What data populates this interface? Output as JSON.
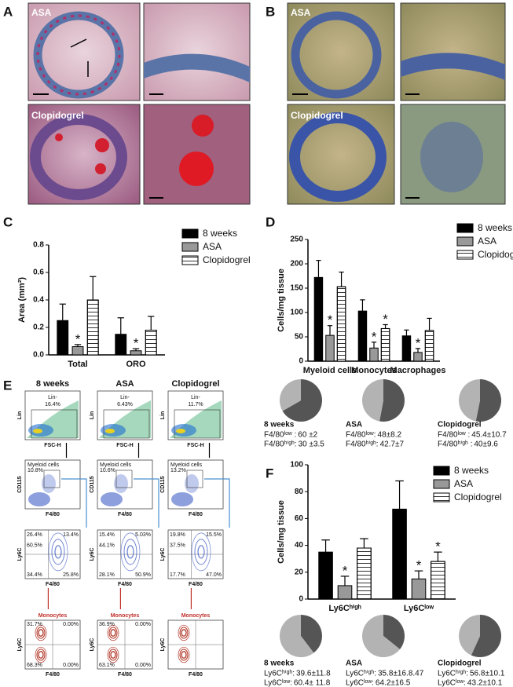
{
  "panels": [
    "A",
    "B",
    "C",
    "D",
    "E",
    "F"
  ],
  "histology": {
    "A": [
      "ASA",
      "Clopidogrel"
    ],
    "B": [
      "ASA",
      "Clopidogrel"
    ]
  },
  "flow": {
    "columns": [
      "8 weeks",
      "ASA",
      "Clopidogrel"
    ],
    "row1": {
      "ylabel": "Lin",
      "xlabel": "FSC-H",
      "gate": "Lin-",
      "pct": [
        "16.4%",
        "6.43%",
        "11.7%"
      ]
    },
    "row2": {
      "ylabel": "CD115",
      "xlabel": "F4/80",
      "gate": "Myeloid cells",
      "pct": [
        "10.8%",
        "10.6%",
        "13.2%"
      ]
    },
    "row3": {
      "ylabel": "Ly6C",
      "xlabel": "F4/80",
      "quadrants": [
        [
          "26.4%",
          "13.4%",
          "60.5%",
          "34.4%",
          "25.8%"
        ],
        [
          "15.4%",
          "5.03%",
          "44.1%",
          "28.1%",
          "50.9%"
        ],
        [
          "19.8%",
          "15.5%",
          "37.5%",
          "17.7%",
          "47.0%"
        ]
      ]
    },
    "row4": {
      "ylabel": "Ly6C",
      "xlabel": "F4/80",
      "gate": "Monocytes",
      "quadrants": [
        [
          "31.7%",
          "0.00%",
          "68.3%",
          "0.00%"
        ],
        [
          "36.9%",
          "0.00%",
          "63.1%",
          "0.00%"
        ]
      ]
    }
  },
  "chart_data": [
    {
      "type": "bar",
      "ylabel": "Area (mm²)",
      "categories": [
        "Total",
        "ORO"
      ],
      "series": [
        {
          "name": "8 weeks",
          "color": "#000000",
          "values": [
            0.25,
            0.15
          ],
          "errors": [
            0.12,
            0.12
          ]
        },
        {
          "name": "ASA",
          "color": "#999999",
          "values": [
            0.06,
            0.03
          ],
          "errors": [
            0.015,
            0.015
          ],
          "significance": [
            "*",
            "*"
          ]
        },
        {
          "name": "Clopidogrel",
          "color": "#ffffff",
          "hatch": "horizontal",
          "values": [
            0.4,
            0.18
          ],
          "errors": [
            0.17,
            0.1
          ]
        }
      ],
      "ylim": [
        0,
        0.8
      ],
      "yticks": [
        {
          "value": 0,
          "label": "0.0"
        },
        0.2,
        0.4,
        0.6,
        0.8
      ],
      "legend": "right"
    },
    {
      "type": "bar",
      "ylabel": "Cells/mg tissue",
      "categories": [
        "Myeloid cells",
        "Monocytes",
        "Macrophages"
      ],
      "series": [
        {
          "name": "8 weeks",
          "color": "#000000",
          "values": [
            172,
            103,
            52
          ],
          "errors": [
            35,
            23,
            12
          ]
        },
        {
          "name": "ASA",
          "color": "#999999",
          "values": [
            53,
            27,
            18
          ],
          "errors": [
            20,
            12,
            8
          ],
          "significance": [
            "*",
            "*",
            "*"
          ]
        },
        {
          "name": "Clopidogrel",
          "color": "#ffffff",
          "hatch": "horizontal",
          "values": [
            153,
            67,
            63
          ],
          "errors": [
            30,
            8,
            25
          ],
          "significance": [
            null,
            "*",
            null
          ]
        }
      ],
      "ylim": [
        0,
        250
      ],
      "yticks": [
        0,
        50,
        100,
        150,
        200,
        250
      ],
      "legend": "right"
    },
    {
      "type": "bar",
      "ylabel": "Cells/mg tissue",
      "categories": [
        "Ly6Cʰⁱᵍʰ",
        "Ly6Cˡᵒʷ"
      ],
      "series": [
        {
          "name": "8 weeks",
          "color": "#000000",
          "values": [
            35,
            67
          ],
          "errors": [
            9,
            21
          ]
        },
        {
          "name": "ASA",
          "color": "#999999",
          "values": [
            10,
            15
          ],
          "errors": [
            7,
            6
          ],
          "significance": [
            "*",
            "*"
          ]
        },
        {
          "name": "Clopidogrel",
          "color": "#ffffff",
          "hatch": "horizontal",
          "values": [
            38,
            28
          ],
          "errors": [
            7,
            7
          ],
          "significance": [
            null,
            "*"
          ]
        }
      ],
      "ylim": [
        0,
        100
      ],
      "yticks": [
        0,
        20,
        40,
        60,
        80,
        100
      ],
      "legend": "upper right"
    },
    {
      "type": "pie",
      "title": "8 weeks",
      "categories": [
        "F4/80ˡᵒʷ :",
        "F4/80ʰⁱᵍʰ:"
      ],
      "values": [
        60,
        30
      ],
      "value_labels": [
        "60 ±2",
        "30 ±3.5"
      ],
      "colors": [
        "#555555",
        "#b3b3b3"
      ]
    },
    {
      "type": "pie",
      "title": "ASA",
      "categories": [
        "F4/80ˡᵒʷ:",
        "F4/80ʰⁱᵍʰ:"
      ],
      "values": [
        48,
        42.7
      ],
      "value_labels": [
        "48±8.2",
        "42.7±7"
      ],
      "colors": [
        "#555555",
        "#b3b3b3"
      ]
    },
    {
      "type": "pie",
      "title": "Clopidogrel",
      "categories": [
        "F4/80ˡᵒʷ :",
        "F4/80ʰⁱᵍʰ :"
      ],
      "values": [
        45.4,
        40
      ],
      "value_labels": [
        "45.4±10.7",
        "40±9.6"
      ],
      "colors": [
        "#555555",
        "#b3b3b3"
      ]
    },
    {
      "type": "pie",
      "title": "8 weeks",
      "categories": [
        "Ly6Cʰⁱᵍʰ:",
        "Ly6Cˡᵒʷ:"
      ],
      "values": [
        39.6,
        60.4
      ],
      "value_labels": [
        "39.6±11.8",
        "60.4± 11.8"
      ],
      "colors": [
        "#555555",
        "#b3b3b3"
      ]
    },
    {
      "type": "pie",
      "title": "ASA",
      "categories": [
        "Ly6Cʰⁱᵍʰ:",
        "Ly6Cˡᵒʷ:"
      ],
      "values": [
        35.8,
        64.2
      ],
      "value_labels": [
        "35.8±16.8.47",
        "64.2±16.5"
      ],
      "colors": [
        "#555555",
        "#b3b3b3"
      ]
    },
    {
      "type": "pie",
      "title": "Clopidogrel",
      "categories": [
        "Ly6Cʰⁱᵍʰ:",
        "Ly6Cˡᵒʷ:"
      ],
      "values": [
        56.8,
        43.2
      ],
      "value_labels": [
        "56.8±10.1",
        "43.2±10.1"
      ],
      "colors": [
        "#555555",
        "#b3b3b3"
      ]
    }
  ]
}
